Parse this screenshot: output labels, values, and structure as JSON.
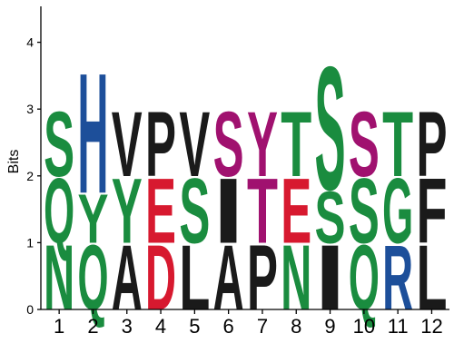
{
  "chart_data": {
    "type": "sequence-logo",
    "ylabel": "Bits",
    "ylim": [
      0,
      4.5
    ],
    "yticks": [
      "0",
      "1",
      "2",
      "3",
      "4"
    ],
    "positions": [
      "1",
      "2",
      "3",
      "4",
      "5",
      "6",
      "7",
      "8",
      "9",
      "10",
      "11",
      "12"
    ],
    "grid": false,
    "colors": {
      "green": "#1a8c3f",
      "blue": "#1d4f9a",
      "black": "#1a1a1a",
      "red": "#d7192f",
      "purple": "#a0116f"
    },
    "columns": [
      [
        {
          "letter": "N",
          "color": "green",
          "bits": 1.0
        },
        {
          "letter": "Q",
          "color": "green",
          "bits": 1.0
        },
        {
          "letter": "S",
          "color": "green",
          "bits": 1.0
        }
      ],
      [
        {
          "letter": "Q",
          "color": "green",
          "bits": 1.0
        },
        {
          "letter": "Y",
          "color": "green",
          "bits": 0.75
        },
        {
          "letter": "H",
          "color": "blue",
          "bits": 1.85
        }
      ],
      [
        {
          "letter": "A",
          "color": "black",
          "bits": 1.0
        },
        {
          "letter": "Y",
          "color": "green",
          "bits": 1.0
        },
        {
          "letter": "V",
          "color": "black",
          "bits": 1.0
        }
      ],
      [
        {
          "letter": "D",
          "color": "red",
          "bits": 1.0
        },
        {
          "letter": "E",
          "color": "red",
          "bits": 1.0
        },
        {
          "letter": "P",
          "color": "black",
          "bits": 1.0
        }
      ],
      [
        {
          "letter": "L",
          "color": "black",
          "bits": 1.0
        },
        {
          "letter": "S",
          "color": "green",
          "bits": 1.0
        },
        {
          "letter": "V",
          "color": "black",
          "bits": 1.0
        }
      ],
      [
        {
          "letter": "A",
          "color": "black",
          "bits": 1.0
        },
        {
          "letter": "I",
          "color": "black",
          "bits": 1.0
        },
        {
          "letter": "S",
          "color": "purple",
          "bits": 1.0
        }
      ],
      [
        {
          "letter": "P",
          "color": "black",
          "bits": 1.0
        },
        {
          "letter": "T",
          "color": "purple",
          "bits": 1.0
        },
        {
          "letter": "Y",
          "color": "purple",
          "bits": 1.0
        }
      ],
      [
        {
          "letter": "N",
          "color": "green",
          "bits": 1.0
        },
        {
          "letter": "E",
          "color": "red",
          "bits": 1.0
        },
        {
          "letter": "T",
          "color": "green",
          "bits": 1.0
        }
      ],
      [
        {
          "letter": "I",
          "color": "black",
          "bits": 1.0
        },
        {
          "letter": "S",
          "color": "green",
          "bits": 0.8
        },
        {
          "letter": "S",
          "color": "green",
          "bits": 1.9
        }
      ],
      [
        {
          "letter": "Q",
          "color": "green",
          "bits": 1.0
        },
        {
          "letter": "S",
          "color": "green",
          "bits": 1.0
        },
        {
          "letter": "S",
          "color": "purple",
          "bits": 1.0
        }
      ],
      [
        {
          "letter": "R",
          "color": "blue",
          "bits": 1.0
        },
        {
          "letter": "G",
          "color": "green",
          "bits": 1.0
        },
        {
          "letter": "T",
          "color": "green",
          "bits": 1.0
        }
      ],
      [
        {
          "letter": "L",
          "color": "black",
          "bits": 1.0
        },
        {
          "letter": "F",
          "color": "black",
          "bits": 1.0
        },
        {
          "letter": "P",
          "color": "black",
          "bits": 1.0
        }
      ]
    ]
  }
}
